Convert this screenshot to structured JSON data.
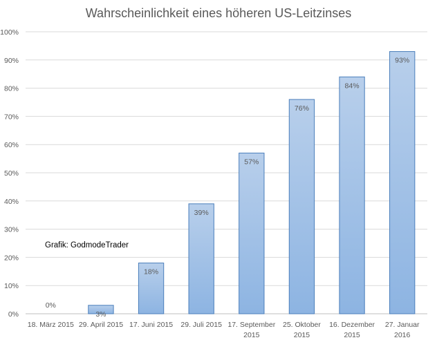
{
  "chart_data": {
    "type": "bar",
    "title": "Wahrscheinlichkeit eines höheren US-Leitzinses",
    "categories": [
      [
        "18. März 2015"
      ],
      [
        "29. April 2015"
      ],
      [
        "17. Juni 2015"
      ],
      [
        "29. Juli 2015"
      ],
      [
        "17. September",
        "2015"
      ],
      [
        "25. Oktober",
        "2015"
      ],
      [
        "16. Dezember",
        "2015"
      ],
      [
        "27. Januar",
        "2016"
      ]
    ],
    "values": [
      0,
      3,
      18,
      39,
      57,
      76,
      84,
      93
    ],
    "data_labels": [
      "0%",
      "3%",
      "18%",
      "39%",
      "57%",
      "76%",
      "84%",
      "93%"
    ],
    "ylim": [
      0,
      100
    ],
    "y_ticks": [
      0,
      10,
      20,
      30,
      40,
      50,
      60,
      70,
      80,
      90,
      100
    ],
    "y_tick_labels": [
      "0%",
      "10%",
      "20%",
      "30%",
      "40%",
      "50%",
      "60%",
      "70%",
      "80%",
      "90%",
      "100%"
    ],
    "grid": true,
    "annotation": "Grafik: GodmodeTrader",
    "bar_gradient_top": "#b8cfeb",
    "bar_gradient_bottom": "#8db4e2",
    "bar_border": "#4a7ebb",
    "grid_color": "#d9d9d9"
  }
}
